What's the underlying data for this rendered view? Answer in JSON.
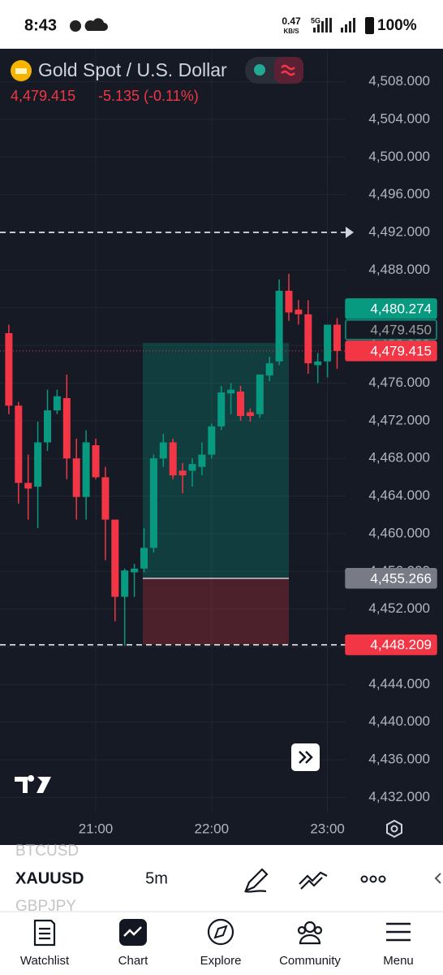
{
  "status_bar": {
    "time": "8:43",
    "speed": "0.47",
    "speed_unit": "KB/S",
    "network": "5G",
    "battery": "100%"
  },
  "header": {
    "symbol_name": "Gold Spot / U.S. Dollar",
    "last_price": "4,479.415",
    "change": "-5.135 (-0.11%)"
  },
  "chart_data": {
    "type": "candlestick",
    "categories": [
      null,
      null,
      null,
      null,
      null,
      null,
      null,
      null,
      null,
      "21:00",
      null,
      null,
      null,
      null,
      null,
      null,
      null,
      null,
      null,
      null,
      null,
      "22:00",
      null,
      null,
      null,
      null,
      null,
      null,
      null,
      null,
      null,
      null,
      null,
      "23:00",
      null
    ],
    "open": [
      4481.3,
      4473.6,
      4465.4,
      4465.0,
      4469.7,
      4473.1,
      4474.4,
      4468.0,
      4463.9,
      4469.4,
      4466.0,
      4461.5,
      4453.3,
      4455.9,
      4456.3,
      4458.5,
      4468.0,
      4469.7,
      4466.7,
      4466.7,
      4467.1,
      4468.4,
      4471.4,
      4474.9,
      4475.1,
      4472.9,
      4472.7,
      4476.8,
      4478.3,
      4485.8,
      4483.8,
      4483.3,
      4477.9,
      4478.3,
      4482.2
    ],
    "high": [
      4482.2,
      4474.0,
      4468.4,
      4471.9,
      4475.3,
      4475.3,
      4476.9,
      4470.1,
      4471.0,
      4470.1,
      4467.1,
      4461.5,
      4456.3,
      4456.8,
      4460.6,
      4468.4,
      4470.6,
      4470.1,
      4467.5,
      4468.0,
      4469.7,
      4471.7,
      4475.7,
      4476.0,
      4475.7,
      4473.3,
      4476.9,
      4478.8,
      4487.0,
      4487.6,
      4484.8,
      4484.8,
      4479.2,
      4482.2,
      4482.9
    ],
    "low": [
      4472.7,
      4463.2,
      4461.5,
      4460.6,
      4468.8,
      4472.7,
      4465.8,
      4461.5,
      4461.5,
      4465.8,
      4457.2,
      4450.7,
      4448.1,
      4453.3,
      4455.9,
      4458.0,
      4467.1,
      4465.8,
      4464.3,
      4465.0,
      4466.2,
      4468.0,
      4471.0,
      4472.7,
      4472.0,
      4471.9,
      4472.3,
      4476.2,
      4477.9,
      4482.6,
      4482.2,
      4477.0,
      4476.0,
      4476.6,
      4477.5
    ],
    "close": [
      4473.6,
      4465.4,
      4464.8,
      4469.7,
      4473.1,
      4474.6,
      4468.0,
      4463.9,
      4469.7,
      4466.0,
      4461.5,
      4453.3,
      4456.1,
      4456.3,
      4458.5,
      4468.0,
      4469.7,
      4466.2,
      4466.2,
      4467.4,
      4468.4,
      4471.4,
      4475.0,
      4475.3,
      4472.5,
      4472.5,
      4476.9,
      4478.1,
      4485.8,
      4483.5,
      4483.3,
      4478.1,
      4478.3,
      4482.2,
      4479.415
    ],
    "up_color": "#089981",
    "down_color": "#f23645",
    "ylim": [
      4430.4,
      4511.5
    ],
    "yticks": [
      {
        "value": 4432,
        "label": "4,432.000"
      },
      {
        "value": 4436,
        "label": "4,436.000"
      },
      {
        "value": 4440,
        "label": "4,440.000"
      },
      {
        "value": 4444,
        "label": "4,444.000"
      },
      {
        "value": 4448,
        "label": "4,448.000"
      },
      {
        "value": 4452,
        "label": "4,452.000"
      },
      {
        "value": 4456,
        "label": "4,456.000"
      },
      {
        "value": 4460,
        "label": "4,460.000"
      },
      {
        "value": 4464,
        "label": "4,464.000"
      },
      {
        "value": 4468,
        "label": "4,468.000"
      },
      {
        "value": 4472,
        "label": "4,472.000"
      },
      {
        "value": 4476,
        "label": "4,476.000"
      },
      {
        "value": 4480,
        "label": "4,480.000"
      },
      {
        "value": 4484,
        "label": "4,484.000"
      },
      {
        "value": 4488,
        "label": "4,488.000"
      },
      {
        "value": 4492,
        "label": "4,492.000"
      },
      {
        "value": 4496,
        "label": "4,496.000"
      },
      {
        "value": 4500,
        "label": "4,500.000"
      },
      {
        "value": 4504,
        "label": "4,504.000"
      },
      {
        "value": 4508,
        "label": "4,508.000"
      }
    ],
    "grid": true,
    "position": {
      "target": 4480.274,
      "entry": 4455.266,
      "stop": 4448.209
    },
    "dashed_lines": [
      4492,
      4448.209
    ],
    "last_price_line": 4479.415,
    "price_tags": [
      {
        "value": 4448.209,
        "label": "4,448.209",
        "color": "#f23645"
      },
      {
        "value": 4455.266,
        "label": "4,455.266",
        "color": "#787b86"
      },
      {
        "value": 4479.415,
        "label": "4,479.415",
        "color": "#f23645"
      },
      {
        "value": 4479.45,
        "label": "4,479.450",
        "color": "#089981",
        "outline": true
      },
      {
        "value": 4480.274,
        "label": "4,480.274",
        "color": "#089981"
      }
    ]
  },
  "toolbar": {
    "prev_symbol": "BTCUSD",
    "symbol": "XAUUSD",
    "next_symbol": "GBPJPY",
    "interval": "5m"
  },
  "nav": [
    "Watchlist",
    "Chart",
    "Explore",
    "Community",
    "Menu"
  ]
}
